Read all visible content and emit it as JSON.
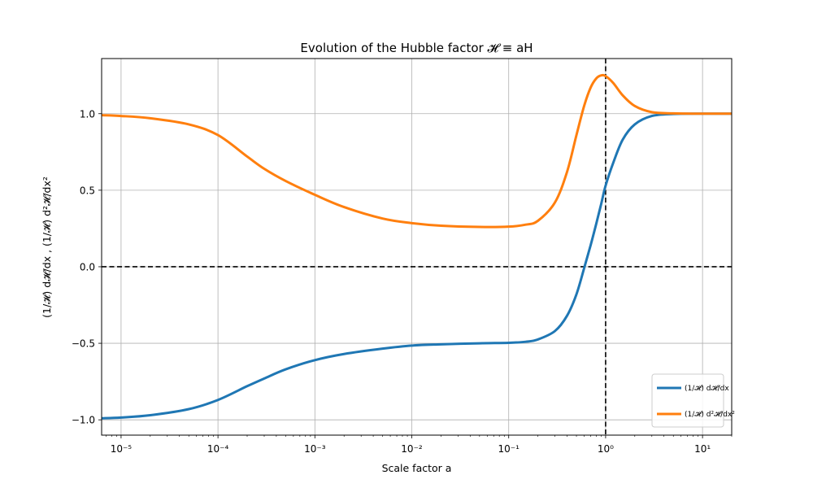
{
  "chart_data": {
    "type": "line",
    "title": "Evolution of the Hubble factor 𝓗 ≡ aH",
    "xlabel": "Scale factor a",
    "ylabel": "(1/𝓗) d𝓗/dx , (1/𝓗) d²𝓗/dx²",
    "xscale": "log",
    "xlim": [
      6.3e-06,
      20
    ],
    "ylim": [
      -1.1,
      1.36
    ],
    "grid": true,
    "legend_position": "lower-right",
    "reference_lines": [
      {
        "orientation": "horizontal",
        "value": 0,
        "style": "dashed",
        "color": "#000000"
      },
      {
        "orientation": "vertical",
        "value": 1,
        "style": "dashed",
        "color": "#000000"
      }
    ],
    "x_ticks": [
      {
        "value": 1e-05,
        "label": "10⁻⁵"
      },
      {
        "value": 0.0001,
        "label": "10⁻⁴"
      },
      {
        "value": 0.001,
        "label": "10⁻³"
      },
      {
        "value": 0.01,
        "label": "10⁻²"
      },
      {
        "value": 0.1,
        "label": "10⁻¹"
      },
      {
        "value": 1,
        "label": "10⁰"
      },
      {
        "value": 10,
        "label": "10¹"
      }
    ],
    "y_ticks": [
      {
        "value": -1.0,
        "label": "−1.0"
      },
      {
        "value": -0.5,
        "label": "−0.5"
      },
      {
        "value": 0.0,
        "label": "0.0"
      },
      {
        "value": 0.5,
        "label": "0.5"
      },
      {
        "value": 1.0,
        "label": "1.0"
      }
    ],
    "series": [
      {
        "name": "(1/𝓗) d𝓗/dx",
        "color": "#1f77b4",
        "x": [
          6.3e-06,
          1e-05,
          2e-05,
          5e-05,
          0.0001,
          0.0002,
          0.0003,
          0.0005,
          0.001,
          0.002,
          0.005,
          0.01,
          0.02,
          0.05,
          0.1,
          0.15,
          0.2,
          0.3,
          0.4,
          0.5,
          0.6,
          0.7,
          0.8,
          0.9,
          1.0,
          1.2,
          1.5,
          2,
          3,
          5,
          10,
          20
        ],
        "y": [
          -0.99,
          -0.985,
          -0.97,
          -0.93,
          -0.87,
          -0.78,
          -0.73,
          -0.67,
          -0.61,
          -0.57,
          -0.535,
          -0.515,
          -0.507,
          -0.5,
          -0.497,
          -0.49,
          -0.475,
          -0.42,
          -0.32,
          -0.18,
          -0.01,
          0.14,
          0.28,
          0.41,
          0.53,
          0.68,
          0.83,
          0.93,
          0.985,
          0.998,
          1.0,
          1.0
        ]
      },
      {
        "name": "(1/𝓗) d²𝓗/dx²",
        "color": "#ff7f0e",
        "x": [
          6.3e-06,
          1e-05,
          2e-05,
          5e-05,
          0.0001,
          0.0002,
          0.0003,
          0.0005,
          0.001,
          0.002,
          0.005,
          0.01,
          0.02,
          0.05,
          0.1,
          0.15,
          0.2,
          0.3,
          0.4,
          0.5,
          0.6,
          0.7,
          0.8,
          0.9,
          1.0,
          1.2,
          1.5,
          2,
          3,
          5,
          10,
          20
        ],
        "y": [
          0.99,
          0.985,
          0.97,
          0.93,
          0.86,
          0.72,
          0.64,
          0.56,
          0.47,
          0.39,
          0.315,
          0.285,
          0.268,
          0.26,
          0.262,
          0.275,
          0.3,
          0.42,
          0.62,
          0.86,
          1.05,
          1.17,
          1.23,
          1.25,
          1.245,
          1.2,
          1.12,
          1.05,
          1.01,
          1.002,
          1.0,
          1.0
        ]
      }
    ],
    "legend": [
      {
        "label": "(1/𝓗) d𝓗/dx",
        "color": "#1f77b4"
      },
      {
        "label": "(1/𝓗) d²𝓗/dx²",
        "color": "#ff7f0e"
      }
    ]
  }
}
